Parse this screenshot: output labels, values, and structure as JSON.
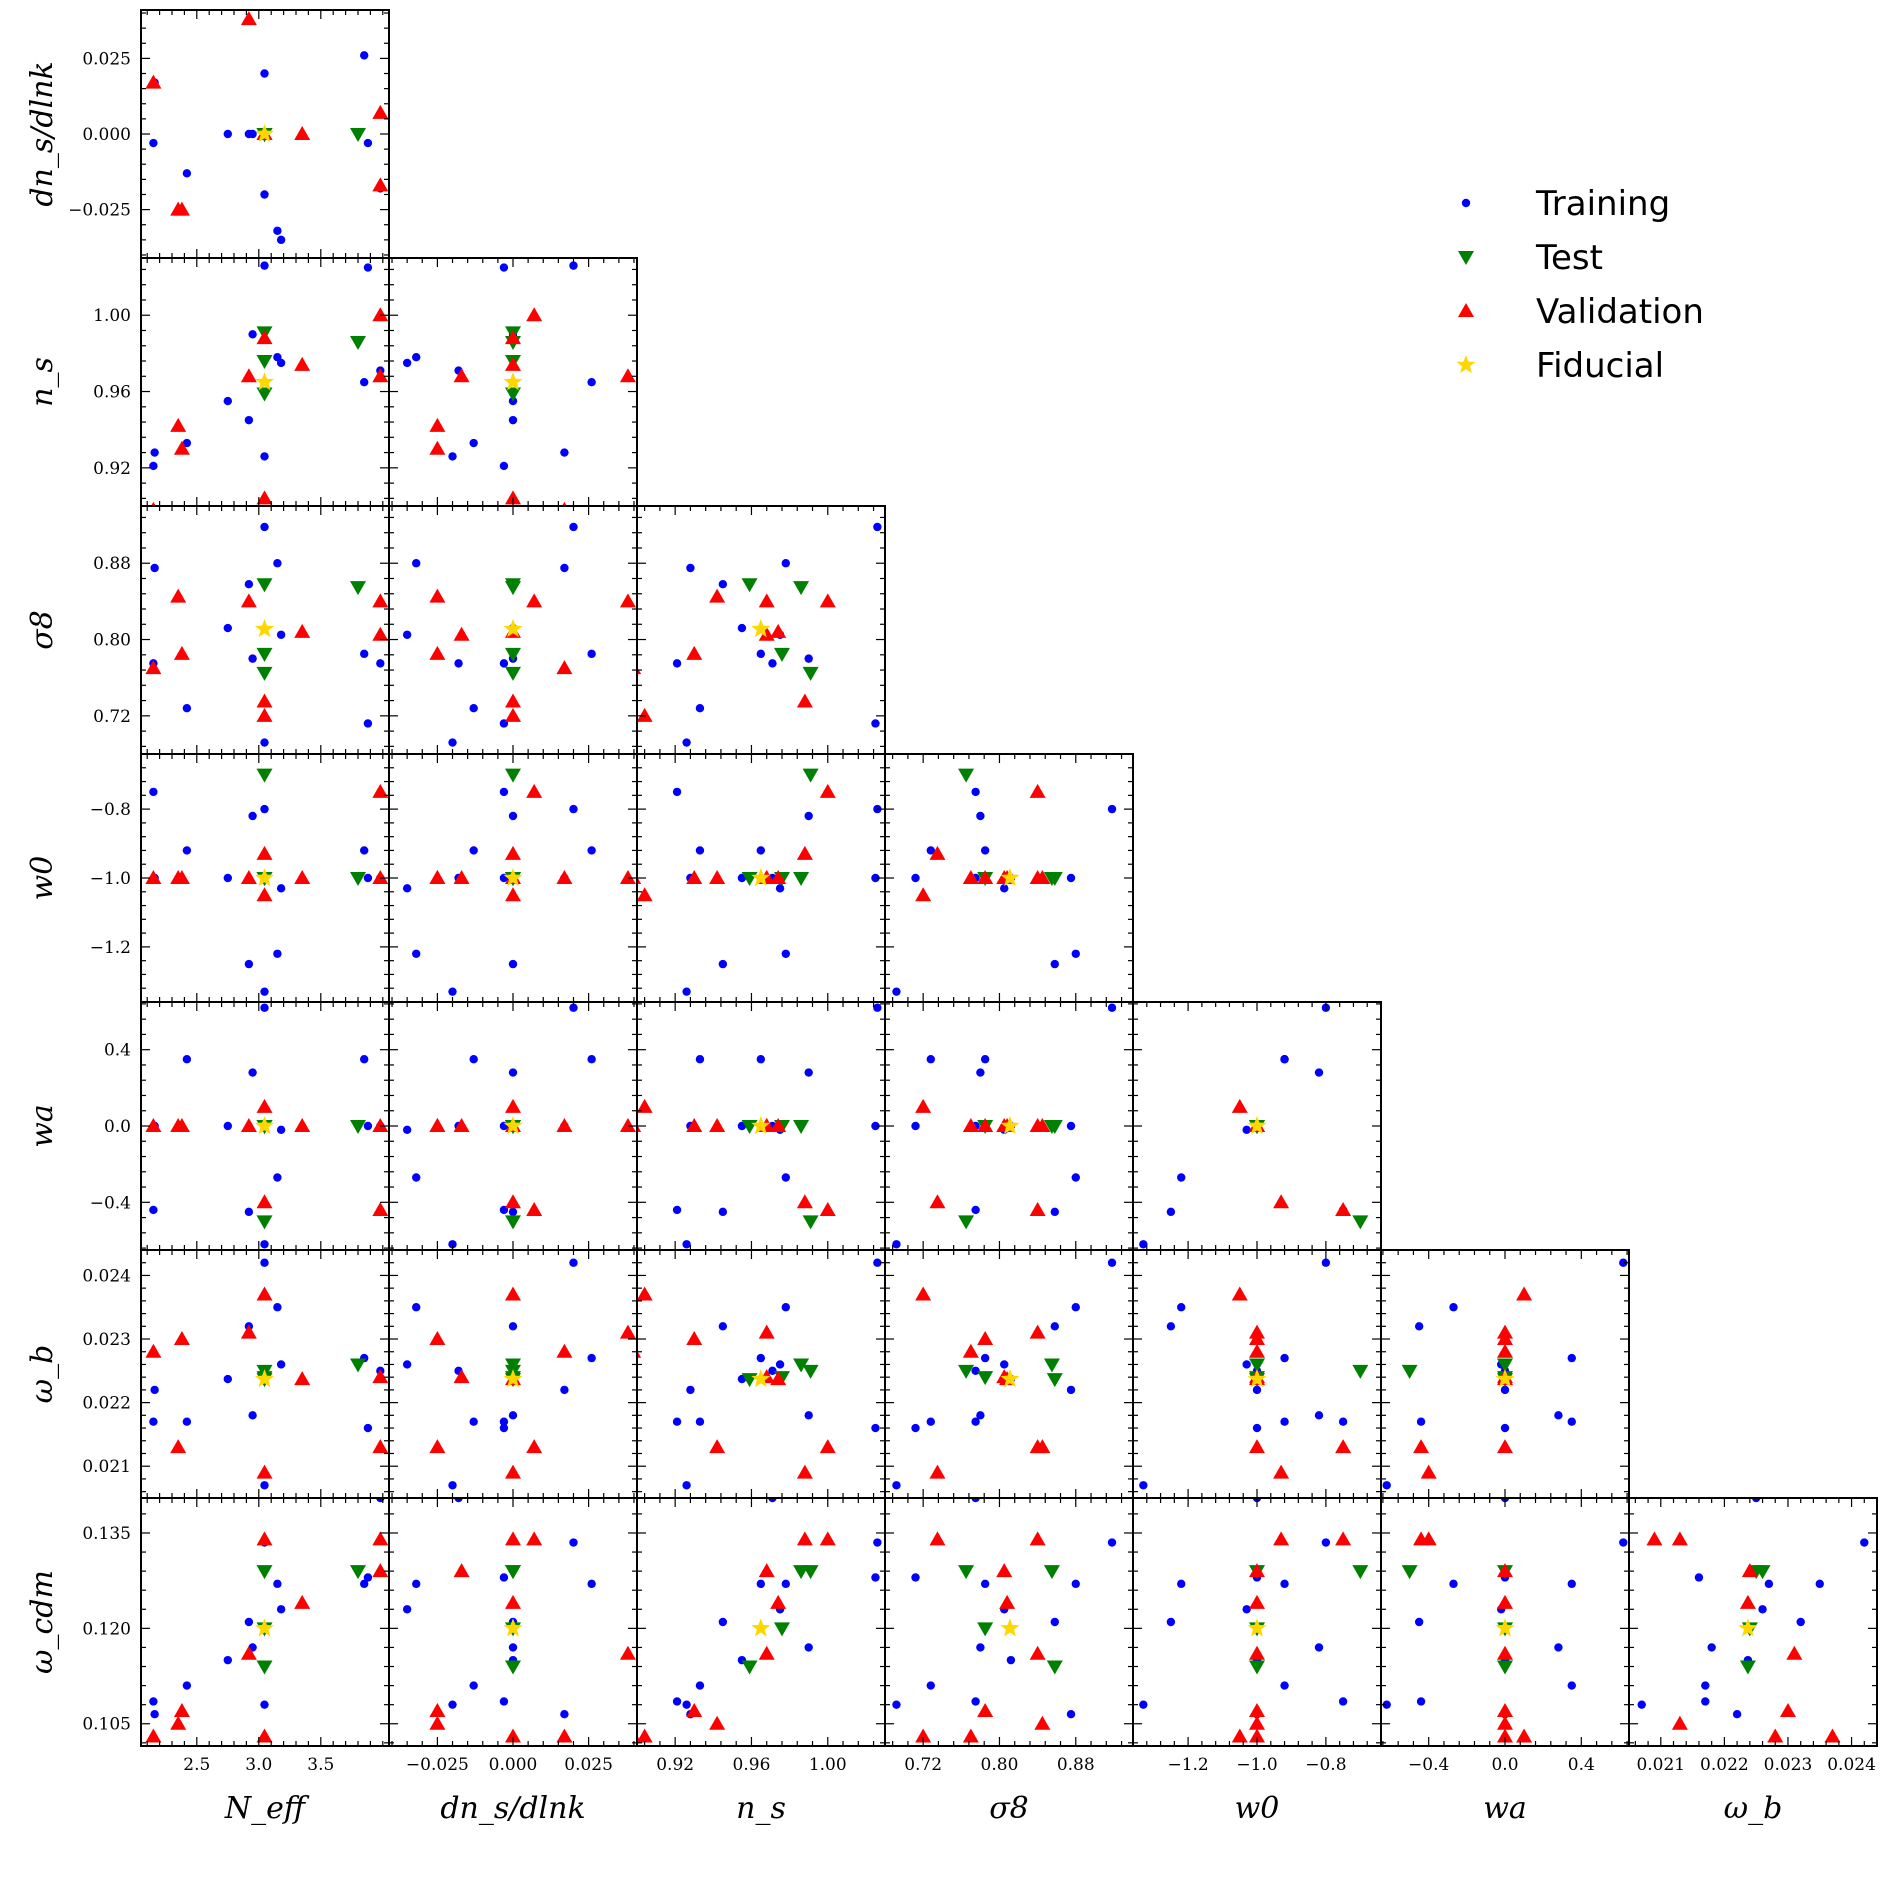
{
  "chart_data": {
    "type": "scatter",
    "layout": "corner-plot",
    "parameters": [
      {
        "key": "Neff",
        "label": "N_eff",
        "range": [
          2.05,
          4.05
        ],
        "ticks": [
          2.5,
          3.0,
          3.5
        ],
        "tick_labels": [
          "2.5",
          "3.0",
          "3.5"
        ]
      },
      {
        "key": "dns",
        "label": "dn_s/dlnk",
        "range": [
          -0.041,
          0.041
        ],
        "ticks": [
          -0.025,
          0.0,
          0.025
        ],
        "tick_labels": [
          "−0.025",
          "0.000",
          "0.025"
        ]
      },
      {
        "key": "ns",
        "label": "n_s",
        "range": [
          0.9,
          1.03
        ],
        "ticks": [
          0.92,
          0.96,
          1.0
        ],
        "tick_labels": [
          "0.92",
          "0.96",
          "1.00"
        ]
      },
      {
        "key": "s8",
        "label": "σ8",
        "range": [
          0.68,
          0.94
        ],
        "ticks": [
          0.72,
          0.8,
          0.88
        ],
        "tick_labels": [
          "0.72",
          "0.80",
          "0.88"
        ]
      },
      {
        "key": "w0",
        "label": "w0",
        "range": [
          -1.36,
          -0.64
        ],
        "ticks": [
          -1.2,
          -1.0,
          -0.8
        ],
        "tick_labels": [
          "−1.2",
          "−1.0",
          "−0.8"
        ]
      },
      {
        "key": "wa",
        "label": "wa",
        "range": [
          -0.65,
          0.65
        ],
        "ticks": [
          -0.4,
          0.0,
          0.4
        ],
        "tick_labels": [
          "−0.4",
          "0.0",
          "0.4"
        ]
      },
      {
        "key": "wb",
        "label": "ω_b",
        "range": [
          0.0205,
          0.0244
        ],
        "ticks": [
          0.021,
          0.022,
          0.023,
          0.024
        ],
        "tick_labels": [
          "0.021",
          "0.022",
          "0.023",
          "0.024"
        ]
      },
      {
        "key": "wcdm",
        "label": "ω_cdm",
        "range": [
          0.1015,
          0.1405
        ],
        "ticks": [
          0.105,
          0.12,
          0.135
        ],
        "tick_labels": [
          "0.105",
          "0.120",
          "0.135"
        ]
      }
    ],
    "fiducial": {
      "Neff": 3.046,
      "dns": 0.0,
      "ns": 0.9649,
      "s8": 0.811,
      "w0": -1.0,
      "wa": 0.0,
      "wb": 0.02237,
      "wcdm": 0.12
    },
    "series": [
      {
        "name": "Training",
        "color": "#0000ff",
        "marker": "circle",
        "points": [
          {
            "Neff": 2.15,
            "dns": -0.003,
            "ns": 0.921,
            "s8": 0.775,
            "w0": -0.75,
            "wa": -0.44,
            "wb": 0.0217,
            "wcdm": 0.1085
          },
          {
            "Neff": 2.16,
            "dns": 0.017,
            "ns": 0.928,
            "s8": 0.875,
            "w0": -1.0,
            "wa": 0.0,
            "wb": 0.0222,
            "wcdm": 0.1065
          },
          {
            "Neff": 2.42,
            "dns": -0.013,
            "ns": 0.933,
            "s8": 0.728,
            "w0": -0.92,
            "wa": 0.35,
            "wb": 0.0217,
            "wcdm": 0.111
          },
          {
            "Neff": 2.75,
            "dns": 0.0,
            "ns": 0.955,
            "s8": 0.812,
            "w0": -1.0,
            "wa": 0.0,
            "wb": 0.02237,
            "wcdm": 0.115
          },
          {
            "Neff": 3.85,
            "dns": 0.026,
            "ns": 0.9649,
            "s8": 0.785,
            "w0": -0.92,
            "wa": 0.35,
            "wb": 0.0227,
            "wcdm": 0.127
          },
          {
            "Neff": 3.88,
            "dns": -0.003,
            "ns": 1.025,
            "s8": 0.712,
            "w0": -1.0,
            "wa": 0.0,
            "wb": 0.0216,
            "wcdm": 0.128
          },
          {
            "Neff": 3.98,
            "dns": -0.018,
            "ns": 0.971,
            "s8": 0.775,
            "w0": -1.0,
            "wa": 0.0,
            "wb": 0.0225,
            "wcdm": 0.1405
          },
          {
            "Neff": 3.046,
            "dns": 0.02,
            "ns": 1.026,
            "s8": 0.918,
            "w0": -0.8,
            "wa": 0.62,
            "wb": 0.0242,
            "wcdm": 0.1335
          },
          {
            "Neff": 3.046,
            "dns": -0.02,
            "ns": 0.926,
            "s8": 0.692,
            "w0": -1.33,
            "wa": -0.62,
            "wb": 0.0207,
            "wcdm": 0.108
          },
          {
            "Neff": 3.15,
            "dns": -0.032,
            "ns": 0.978,
            "s8": 0.88,
            "w0": -1.22,
            "wa": -0.27,
            "wb": 0.0235,
            "wcdm": 0.127
          },
          {
            "Neff": 3.18,
            "dns": -0.035,
            "ns": 0.975,
            "s8": 0.805,
            "w0": -1.03,
            "wa": -0.02,
            "wb": 0.0226,
            "wcdm": 0.123
          },
          {
            "Neff": 2.92,
            "dns": 0.0,
            "ns": 0.945,
            "s8": 0.858,
            "w0": -1.25,
            "wa": -0.45,
            "wb": 0.0232,
            "wcdm": 0.121
          },
          {
            "Neff": 2.95,
            "dns": 0.0,
            "ns": 0.99,
            "s8": 0.78,
            "w0": -0.82,
            "wa": 0.28,
            "wb": 0.0218,
            "wcdm": 0.117
          }
        ]
      },
      {
        "name": "Test",
        "color": "#008000",
        "marker": "triangle-down",
        "points": [
          {
            "Neff": 3.8,
            "dns": 0.0,
            "ns": 0.986,
            "s8": 0.855,
            "w0": -1.0,
            "wa": 0.0,
            "wb": 0.0226,
            "wcdm": 0.129
          },
          {
            "Neff": 3.046,
            "dns": 0.0,
            "ns": 0.991,
            "s8": 0.765,
            "w0": -0.7,
            "wa": -0.5,
            "wb": 0.0225,
            "wcdm": 0.129
          },
          {
            "Neff": 3.046,
            "dns": 0.0,
            "ns": 0.959,
            "s8": 0.858,
            "w0": -1.0,
            "wa": 0.0,
            "wb": 0.02237,
            "wcdm": 0.114
          },
          {
            "Neff": 3.046,
            "dns": 0.0,
            "ns": 0.976,
            "s8": 0.785,
            "w0": -1.0,
            "wa": 0.0,
            "wb": 0.0224,
            "wcdm": 0.12
          }
        ]
      },
      {
        "name": "Validation",
        "color": "#ff0000",
        "marker": "triangle-up",
        "points": [
          {
            "Neff": 2.15,
            "dns": 0.017,
            "ns": 0.898,
            "s8": 0.77,
            "w0": -1.0,
            "wa": 0.0,
            "wb": 0.0228,
            "wcdm": 0.103
          },
          {
            "Neff": 2.35,
            "dns": -0.025,
            "ns": 0.942,
            "s8": 0.845,
            "w0": -1.0,
            "wa": 0.0,
            "wb": 0.0213,
            "wcdm": 0.105
          },
          {
            "Neff": 2.38,
            "dns": -0.025,
            "ns": 0.93,
            "s8": 0.785,
            "w0": -1.0,
            "wa": 0.0,
            "wb": 0.023,
            "wcdm": 0.107
          },
          {
            "Neff": 2.92,
            "dns": 0.038,
            "ns": 0.968,
            "s8": 0.84,
            "w0": -1.0,
            "wa": 0.0,
            "wb": 0.0231,
            "wcdm": 0.116
          },
          {
            "Neff": 3.35,
            "dns": 0.0,
            "ns": 0.974,
            "s8": 0.808,
            "w0": -1.0,
            "wa": 0.0,
            "wb": 0.02237,
            "wcdm": 0.124
          },
          {
            "Neff": 3.98,
            "dns": 0.007,
            "ns": 1.0,
            "s8": 0.84,
            "w0": -0.75,
            "wa": -0.44,
            "wb": 0.0213,
            "wcdm": 0.134
          },
          {
            "Neff": 3.98,
            "dns": -0.017,
            "ns": 0.968,
            "s8": 0.805,
            "w0": -1.0,
            "wa": 0.0,
            "wb": 0.0224,
            "wcdm": 0.129
          },
          {
            "Neff": 3.046,
            "dns": 0.0,
            "ns": 0.904,
            "s8": 0.72,
            "w0": -1.05,
            "wa": 0.1,
            "wb": 0.0237,
            "wcdm": 0.103
          },
          {
            "Neff": 3.046,
            "dns": 0.0,
            "ns": 0.988,
            "s8": 0.735,
            "w0": -0.93,
            "wa": -0.4,
            "wb": 0.0209,
            "wcdm": 0.134
          }
        ]
      },
      {
        "name": "Fiducial",
        "color": "#ffd700",
        "marker": "star",
        "points": [
          {
            "Neff": 3.046,
            "dns": 0.0,
            "ns": 0.9649,
            "s8": 0.811,
            "w0": -1.0,
            "wa": 0.0,
            "wb": 0.02237,
            "wcdm": 0.12
          }
        ]
      }
    ],
    "legend": {
      "position": "top-right",
      "entries": [
        "Training",
        "Test",
        "Validation",
        "Fiducial"
      ]
    }
  }
}
